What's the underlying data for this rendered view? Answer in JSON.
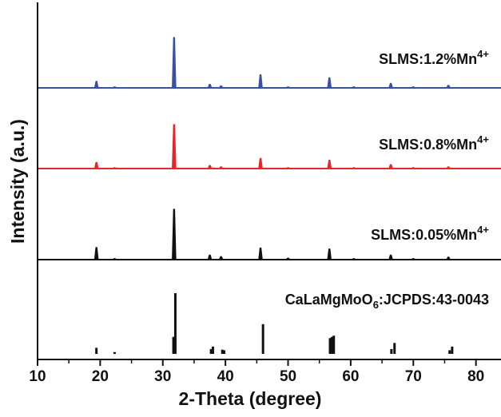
{
  "chart_data": {
    "type": "xrd-stack",
    "xlabel": "2-Theta (degree)",
    "ylabel": "Intensity (a.u.)",
    "xlim": [
      10,
      84
    ],
    "xticks": [
      10,
      20,
      30,
      40,
      50,
      60,
      70,
      80
    ],
    "minor_xticks": [
      15,
      25,
      35,
      45,
      55,
      65,
      75
    ],
    "series": [
      {
        "name": [
          {
            "text": "SLMS:1.2%Mn"
          },
          {
            "text": "4+",
            "shift": "super"
          }
        ],
        "color": "#3a4fa8",
        "type": "line",
        "x": [
          19.4,
          22.3,
          31.8,
          37.5,
          39.3,
          45.6,
          50.0,
          56.6,
          60.5,
          66.4,
          70.0,
          75.6
        ],
        "values": [
          13,
          2,
          100,
          7,
          4,
          26,
          2,
          20,
          2,
          9,
          2,
          5
        ]
      },
      {
        "name": [
          {
            "text": "SLMS:0.8%Mn"
          },
          {
            "text": "4+",
            "shift": "super"
          }
        ],
        "color": "#e8262a",
        "type": "line",
        "x": [
          19.4,
          22.3,
          31.8,
          37.5,
          39.3,
          45.6,
          50.0,
          56.6,
          60.5,
          66.4,
          70.0,
          75.6
        ],
        "values": [
          14,
          2,
          100,
          7,
          4,
          23,
          2,
          19,
          2,
          9,
          2,
          4
        ]
      },
      {
        "name": [
          {
            "text": "SLMS:0.05%Mn"
          },
          {
            "text": "4+",
            "shift": "super"
          }
        ],
        "color": "#111111",
        "type": "line",
        "x": [
          19.4,
          22.3,
          31.8,
          37.5,
          39.3,
          45.6,
          50.0,
          56.6,
          60.5,
          66.4,
          70.0,
          75.6
        ],
        "values": [
          24,
          2,
          100,
          9,
          6,
          23,
          3,
          21,
          2,
          9,
          2,
          5
        ]
      },
      {
        "name": [
          {
            "text": "CaLaMgMoO"
          },
          {
            "text": "6",
            "shift": "sub"
          },
          {
            "text": ":JCPDS:43-0043"
          }
        ],
        "color": "#111111",
        "type": "stem",
        "x": [
          19.4,
          22.3,
          31.7,
          32.0,
          37.7,
          38.0,
          39.5,
          39.8,
          46.0,
          56.7,
          57.0,
          57.3,
          66.5,
          67.0,
          75.8,
          76.2
        ],
        "values": [
          10,
          3,
          28,
          100,
          8,
          12,
          7,
          6,
          49,
          26,
          28,
          30,
          8,
          18,
          6,
          12
        ]
      }
    ]
  }
}
